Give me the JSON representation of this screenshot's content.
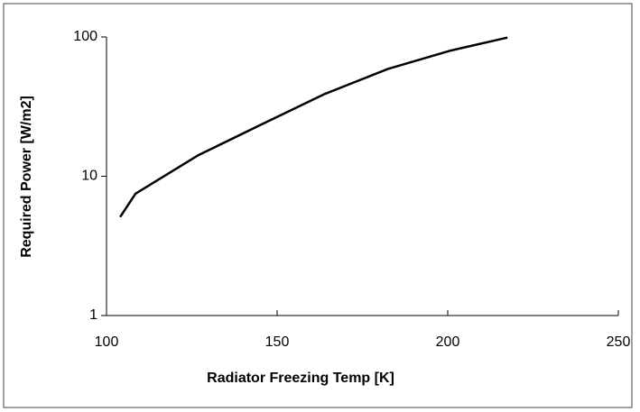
{
  "chart_data": {
    "type": "line",
    "xlabel": "Radiator Freezing Temp [K]",
    "ylabel": "Required Power [W/m2]",
    "x": [
      104,
      108.5,
      127,
      145.5,
      164,
      182.5,
      201,
      217.5
    ],
    "series": [
      {
        "name": null,
        "color": "#000000",
        "values": [
          5.1,
          7.5,
          14.2,
          23.6,
          39,
          59,
          80,
          99
        ]
      }
    ],
    "xlim": [
      100,
      250
    ],
    "xticks": [
      100,
      150,
      200,
      250
    ],
    "ylim": [
      1,
      100
    ],
    "yticks": [
      1,
      10,
      100
    ],
    "ylog": true,
    "grid": false
  }
}
